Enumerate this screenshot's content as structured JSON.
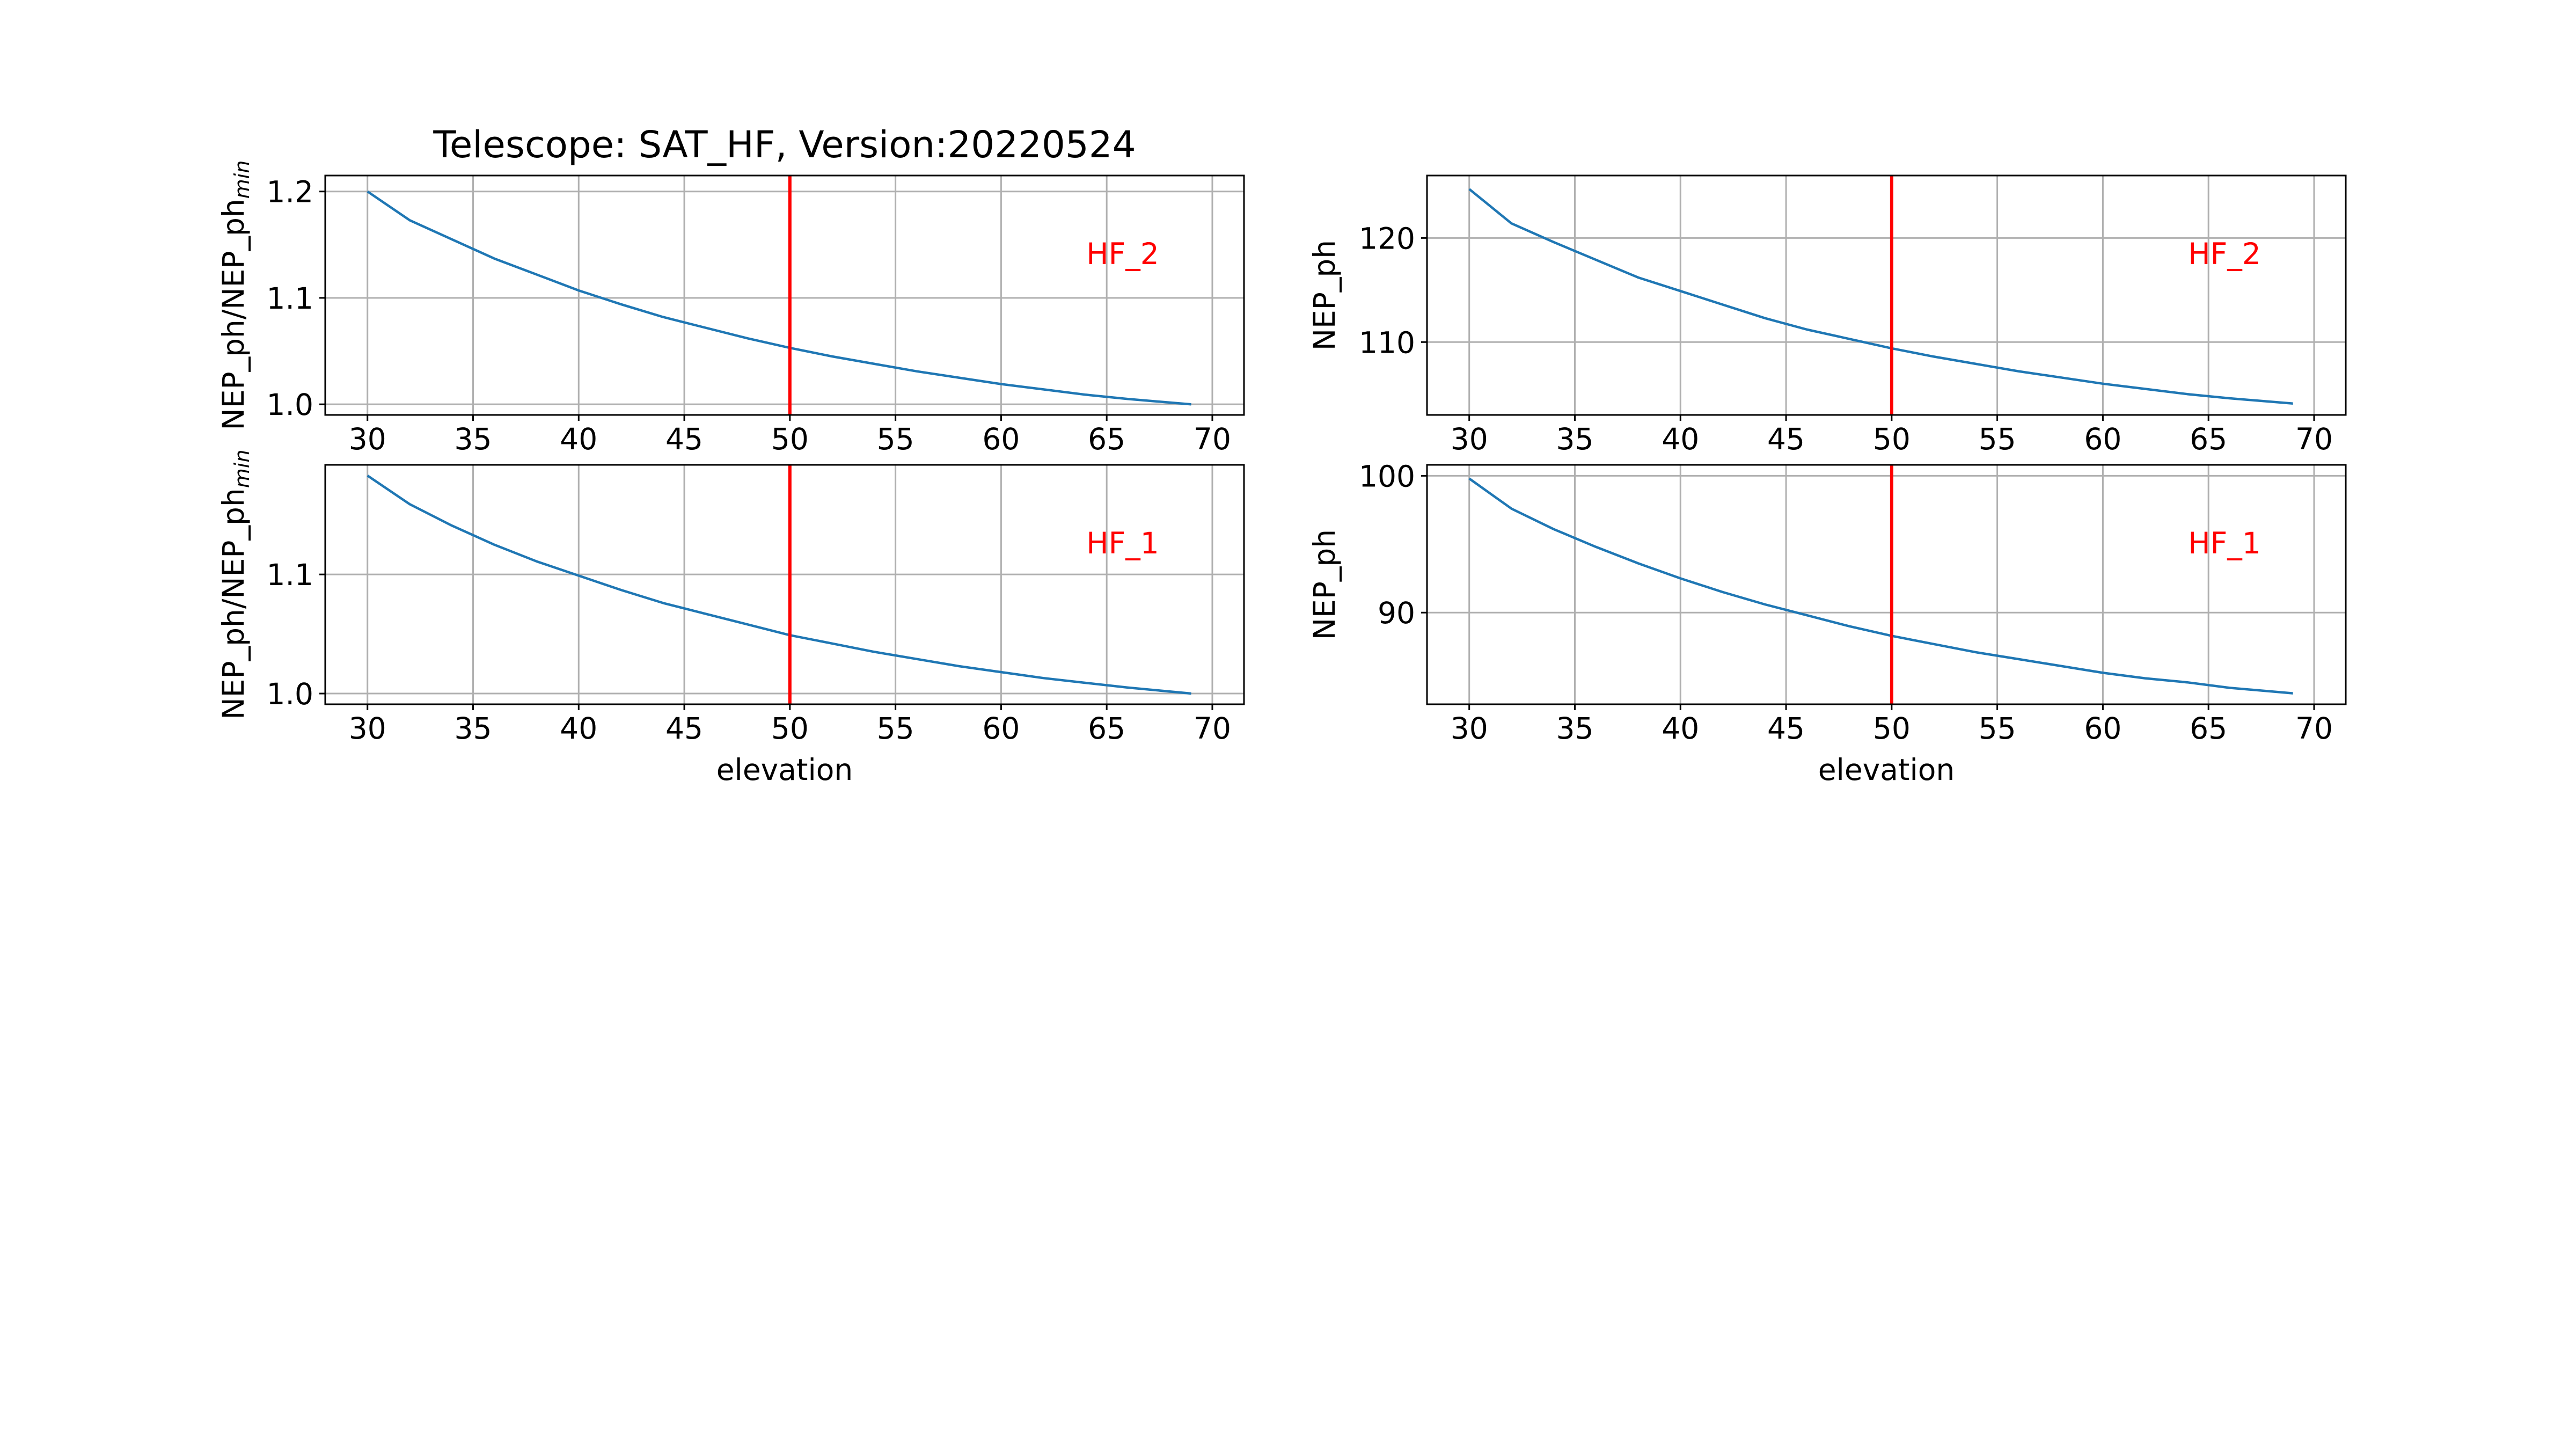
{
  "figure": {
    "title": "Telescope: SAT_HF,   Version:20220524",
    "marker_color": "#ff0000",
    "series_color": "#1f77b4",
    "label_color": "#ff0000"
  },
  "chart_data": [
    {
      "type": "line",
      "panel": "top-left",
      "annotation": "HF_2",
      "ylabel": "NEP_ph/NEP_ph",
      "ylabel_subscript": "min",
      "xlabel": "",
      "xlim": [
        28,
        71.5
      ],
      "ylim": [
        0.99,
        1.215
      ],
      "xticks": [
        30,
        35,
        40,
        45,
        50,
        55,
        60,
        65,
        70
      ],
      "yticks": [
        1.0,
        1.1,
        1.2
      ],
      "ytick_labels": [
        "1.0",
        "1.1",
        "1.2"
      ],
      "vline_x": 50,
      "grid": true,
      "series": [
        {
          "x": [
            30,
            32,
            34,
            36,
            38,
            40,
            42,
            44,
            46,
            48,
            50,
            52,
            54,
            56,
            58,
            60,
            62,
            64,
            66,
            69
          ],
          "values": [
            1.2,
            1.173,
            1.155,
            1.137,
            1.122,
            1.107,
            1.094,
            1.082,
            1.072,
            1.062,
            1.053,
            1.045,
            1.038,
            1.031,
            1.025,
            1.019,
            1.014,
            1.009,
            1.005,
            1.0
          ]
        }
      ]
    },
    {
      "type": "line",
      "panel": "top-right",
      "annotation": "HF_2",
      "ylabel": "NEP_ph",
      "xlabel": "",
      "xlim": [
        28,
        71.5
      ],
      "ylim": [
        103,
        126
      ],
      "xticks": [
        30,
        35,
        40,
        45,
        50,
        55,
        60,
        65,
        70
      ],
      "yticks": [
        110,
        120
      ],
      "ytick_labels": [
        "110",
        "120"
      ],
      "vline_x": 50,
      "grid": true,
      "series": [
        {
          "x": [
            30,
            32,
            34,
            36,
            38,
            40,
            42,
            44,
            46,
            48,
            50,
            52,
            54,
            56,
            58,
            60,
            62,
            64,
            66,
            69
          ],
          "values": [
            124.7,
            121.4,
            119.6,
            117.9,
            116.2,
            114.9,
            113.6,
            112.3,
            111.2,
            110.3,
            109.4,
            108.6,
            107.9,
            107.2,
            106.6,
            106.0,
            105.5,
            105.0,
            104.6,
            104.1
          ]
        }
      ]
    },
    {
      "type": "line",
      "panel": "bottom-left",
      "annotation": "HF_1",
      "ylabel": "NEP_ph/NEP_ph",
      "ylabel_subscript": "min",
      "xlabel": "elevation",
      "xlim": [
        28,
        71.5
      ],
      "ylim": [
        0.991,
        1.192
      ],
      "xticks": [
        30,
        35,
        40,
        45,
        50,
        55,
        60,
        65,
        70
      ],
      "yticks": [
        1.0,
        1.1
      ],
      "ytick_labels": [
        "1.0",
        "1.1"
      ],
      "vline_x": 50,
      "grid": true,
      "series": [
        {
          "x": [
            30,
            32,
            34,
            36,
            38,
            40,
            42,
            44,
            46,
            48,
            50,
            52,
            54,
            56,
            58,
            60,
            62,
            64,
            66,
            69
          ],
          "values": [
            1.183,
            1.159,
            1.141,
            1.125,
            1.111,
            1.099,
            1.087,
            1.076,
            1.067,
            1.058,
            1.049,
            1.042,
            1.035,
            1.029,
            1.023,
            1.018,
            1.013,
            1.009,
            1.005,
            1.0
          ]
        }
      ]
    },
    {
      "type": "line",
      "panel": "bottom-right",
      "annotation": "HF_1",
      "ylabel": "NEP_ph",
      "xlabel": "elevation",
      "xlim": [
        28,
        71.5
      ],
      "ylim": [
        83.3,
        100.8
      ],
      "xticks": [
        30,
        35,
        40,
        45,
        50,
        55,
        60,
        65,
        70
      ],
      "yticks": [
        90,
        100
      ],
      "ytick_labels": [
        "90",
        "100"
      ],
      "vline_x": 50,
      "grid": true,
      "series": [
        {
          "x": [
            30,
            32,
            34,
            36,
            38,
            40,
            42,
            44,
            46,
            48,
            50,
            52,
            54,
            56,
            58,
            60,
            62,
            64,
            66,
            69
          ],
          "values": [
            99.8,
            97.6,
            96.1,
            94.8,
            93.6,
            92.5,
            91.5,
            90.6,
            89.8,
            89.0,
            88.3,
            87.7,
            87.1,
            86.6,
            86.1,
            85.6,
            85.2,
            84.9,
            84.5,
            84.1
          ]
        }
      ]
    }
  ]
}
